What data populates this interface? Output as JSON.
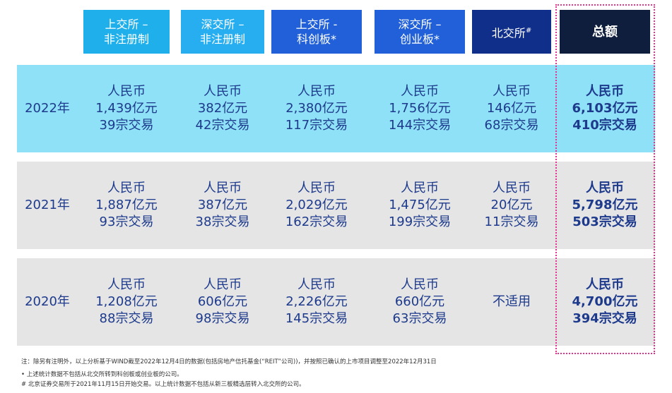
{
  "table": {
    "headers": [
      [
        "上交所 –",
        "非注册制"
      ],
      [
        "深交所 –",
        "非注册制"
      ],
      [
        "上交所 -",
        "科创板*"
      ],
      [
        "深交所 –",
        "创业板*"
      ],
      {
        "text": "北交所",
        "sup": "#"
      },
      [
        "总额"
      ]
    ],
    "rows": [
      {
        "year": "2022年",
        "cells": [
          [
            "人民币",
            "1,439亿元",
            "39宗交易"
          ],
          [
            "人民币",
            "382亿元",
            "42宗交易"
          ],
          [
            "人民币",
            "2,380亿元",
            "117宗交易"
          ],
          [
            "人民币",
            "1,756亿元",
            "144宗交易"
          ],
          [
            "人民币",
            "146亿元",
            "68宗交易"
          ],
          [
            "人民币",
            "6,103亿元",
            "410宗交易"
          ]
        ]
      },
      {
        "year": "2021年",
        "cells": [
          [
            "人民币",
            "1,887亿元",
            "93宗交易"
          ],
          [
            "人民币",
            "387亿元",
            "38宗交易"
          ],
          [
            "人民币",
            "2,029亿元",
            "162宗交易"
          ],
          [
            "人民币",
            "1,475亿元",
            "199宗交易"
          ],
          [
            "人民币",
            "20亿元",
            "11宗交易"
          ],
          [
            "人民币",
            "5,798亿元",
            "503宗交易"
          ]
        ]
      },
      {
        "year": "2020年",
        "cells": [
          [
            "人民币",
            "1,208亿元",
            "88宗交易"
          ],
          [
            "人民币",
            "606亿元",
            "98宗交易"
          ],
          [
            "人民币",
            "2,226亿元",
            "145宗交易"
          ],
          [
            "人民币",
            "660亿元",
            "63宗交易"
          ],
          [
            "不适用"
          ],
          [
            "人民币",
            "4,700亿元",
            "394宗交易"
          ]
        ]
      }
    ]
  },
  "notes": [
    "注：除另有注明外，以上分析基于WIND截至2022年12月4日的数据(包括房地产信托基金(“REIT”公司))，并按照已确认的上市项目调整至2022年12月31日",
    "• 上述统计数据不包括从北交所转到科创板或创业板的公司。",
    "# 北京证券交易所于2021年11月15日开始交易。以上统计数据不包括从新三板精选层转入北交所的公司。"
  ]
}
